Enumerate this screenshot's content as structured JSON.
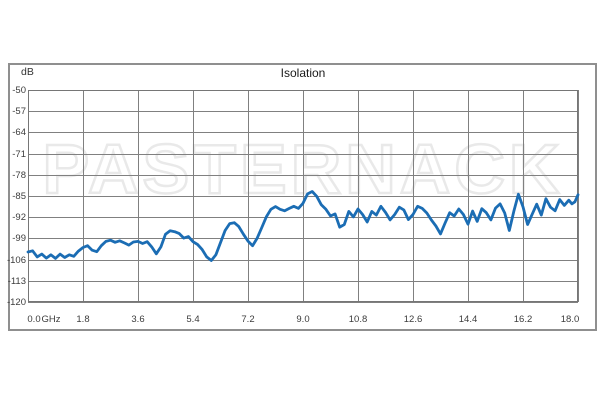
{
  "chart": {
    "title": "Isolation",
    "y_unit": "dB",
    "x_unit": "GHz",
    "watermark": "PASTERNACK",
    "colors": {
      "line": "#1b6db4",
      "grid": "#808080",
      "frame": "#8f8f8f",
      "text": "#3c3c3c",
      "watermark": "#e9e9e9"
    }
  },
  "chart_data": {
    "type": "line",
    "title": "Isolation",
    "xlabel": "GHz",
    "ylabel": "dB",
    "xlim": [
      0,
      18
    ],
    "ylim": [
      -120,
      -50
    ],
    "grid": true,
    "legend_position": "none",
    "x_tick_labels": [
      "0.0",
      "1.8",
      "3.6",
      "5.4",
      "7.2",
      "9.0",
      "10.8",
      "12.6",
      "14.4",
      "16.2",
      "18.0"
    ],
    "y_tick_labels": [
      "-50",
      "-57",
      "-64",
      "-71",
      "-78",
      "-85",
      "-92",
      "-99",
      "-106",
      "-113",
      "-120"
    ],
    "series": [
      {
        "name": "Isolation",
        "color": "#1b6db4",
        "points": [
          [
            0,
            -103.5
          ],
          [
            0.15,
            -103.1
          ],
          [
            0.3,
            -105.1
          ],
          [
            0.45,
            -104.2
          ],
          [
            0.6,
            -105.5
          ],
          [
            0.75,
            -104.4
          ],
          [
            0.9,
            -105.6
          ],
          [
            1.05,
            -104.2
          ],
          [
            1.2,
            -105.3
          ],
          [
            1.35,
            -104.4
          ],
          [
            1.5,
            -104.9
          ],
          [
            1.65,
            -103.2
          ],
          [
            1.8,
            -102.0
          ],
          [
            1.95,
            -101.4
          ],
          [
            2.1,
            -102.9
          ],
          [
            2.25,
            -103.4
          ],
          [
            2.4,
            -101.4
          ],
          [
            2.55,
            -100.0
          ],
          [
            2.7,
            -99.6
          ],
          [
            2.85,
            -100.3
          ],
          [
            3.0,
            -99.8
          ],
          [
            3.15,
            -100.5
          ],
          [
            3.3,
            -101.2
          ],
          [
            3.45,
            -100.2
          ],
          [
            3.6,
            -100.0
          ],
          [
            3.75,
            -100.7
          ],
          [
            3.9,
            -100.1
          ],
          [
            4.05,
            -101.8
          ],
          [
            4.2,
            -104.1
          ],
          [
            4.35,
            -101.8
          ],
          [
            4.5,
            -97.6
          ],
          [
            4.65,
            -96.5
          ],
          [
            4.8,
            -96.8
          ],
          [
            4.95,
            -97.4
          ],
          [
            5.1,
            -98.9
          ],
          [
            5.25,
            -98.4
          ],
          [
            5.4,
            -100.1
          ],
          [
            5.55,
            -101.0
          ],
          [
            5.7,
            -102.7
          ],
          [
            5.85,
            -105.1
          ],
          [
            6.0,
            -106.3
          ],
          [
            6.15,
            -104.4
          ],
          [
            6.3,
            -100.4
          ],
          [
            6.45,
            -96.4
          ],
          [
            6.6,
            -94.1
          ],
          [
            6.75,
            -93.8
          ],
          [
            6.9,
            -95.1
          ],
          [
            7.05,
            -97.6
          ],
          [
            7.2,
            -99.9
          ],
          [
            7.35,
            -101.4
          ],
          [
            7.5,
            -98.9
          ],
          [
            7.65,
            -95.4
          ],
          [
            7.8,
            -91.9
          ],
          [
            7.95,
            -89.4
          ],
          [
            8.1,
            -88.5
          ],
          [
            8.25,
            -89.4
          ],
          [
            8.4,
            -89.9
          ],
          [
            8.55,
            -89.1
          ],
          [
            8.7,
            -88.4
          ],
          [
            8.85,
            -89.1
          ],
          [
            9.0,
            -87.4
          ],
          [
            9.15,
            -84.3
          ],
          [
            9.3,
            -83.5
          ],
          [
            9.45,
            -85.1
          ],
          [
            9.6,
            -87.9
          ],
          [
            9.75,
            -89.4
          ],
          [
            9.9,
            -91.6
          ],
          [
            10.05,
            -90.9
          ],
          [
            10.2,
            -95.3
          ],
          [
            10.35,
            -94.4
          ],
          [
            10.5,
            -90.1
          ],
          [
            10.65,
            -91.9
          ],
          [
            10.8,
            -89.3
          ],
          [
            10.95,
            -91.1
          ],
          [
            11.1,
            -93.6
          ],
          [
            11.25,
            -90.1
          ],
          [
            11.4,
            -91.3
          ],
          [
            11.55,
            -88.4
          ],
          [
            11.7,
            -90.4
          ],
          [
            11.85,
            -92.9
          ],
          [
            12.0,
            -91.1
          ],
          [
            12.15,
            -88.7
          ],
          [
            12.3,
            -89.6
          ],
          [
            12.45,
            -92.8
          ],
          [
            12.6,
            -91.1
          ],
          [
            12.75,
            -88.4
          ],
          [
            12.9,
            -89.1
          ],
          [
            13.05,
            -90.6
          ],
          [
            13.2,
            -92.9
          ],
          [
            13.35,
            -94.9
          ],
          [
            13.5,
            -97.5
          ],
          [
            13.65,
            -93.9
          ],
          [
            13.8,
            -90.5
          ],
          [
            13.95,
            -91.6
          ],
          [
            14.1,
            -89.3
          ],
          [
            14.25,
            -91.1
          ],
          [
            14.4,
            -94.3
          ],
          [
            14.55,
            -90.0
          ],
          [
            14.7,
            -93.4
          ],
          [
            14.85,
            -89.2
          ],
          [
            15.0,
            -90.5
          ],
          [
            15.15,
            -92.9
          ],
          [
            15.3,
            -89.0
          ],
          [
            15.45,
            -87.6
          ],
          [
            15.6,
            -90.6
          ],
          [
            15.75,
            -96.4
          ],
          [
            15.9,
            -90.1
          ],
          [
            16.05,
            -84.4
          ],
          [
            16.2,
            -88.6
          ],
          [
            16.35,
            -94.4
          ],
          [
            16.5,
            -91.0
          ],
          [
            16.65,
            -87.7
          ],
          [
            16.8,
            -91.3
          ],
          [
            16.95,
            -85.9
          ],
          [
            17.1,
            -88.7
          ],
          [
            17.25,
            -89.9
          ],
          [
            17.4,
            -86.2
          ],
          [
            17.55,
            -88.1
          ],
          [
            17.7,
            -86.4
          ],
          [
            17.8,
            -87.6
          ],
          [
            17.9,
            -86.9
          ],
          [
            18.0,
            -84.6
          ]
        ]
      }
    ]
  }
}
